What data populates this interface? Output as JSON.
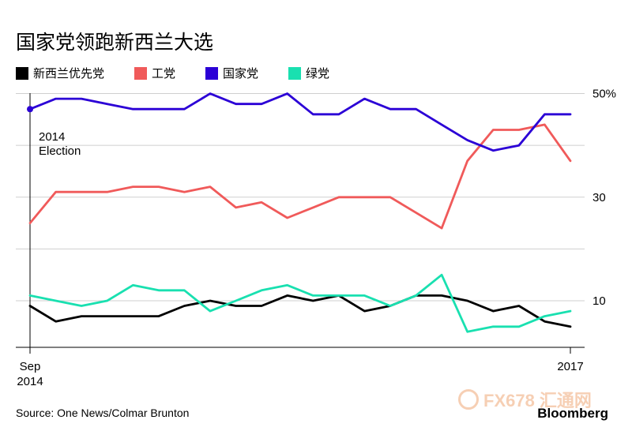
{
  "title": "国家党领跑新西兰大选",
  "source": "Source: One News/Colmar Brunton",
  "brand": "Bloomberg",
  "watermark": "FX678 汇通网",
  "annotation": [
    "2014",
    "Election"
  ],
  "chart_data": {
    "type": "line",
    "x": [
      0,
      1,
      2,
      3,
      4,
      5,
      6,
      7,
      8,
      9,
      10,
      11,
      12,
      13,
      14,
      15,
      16,
      17,
      18,
      19,
      20,
      21
    ],
    "x_tick_labels": [
      [
        "Sep",
        "2014"
      ],
      [
        "2017"
      ]
    ],
    "y_ticks": [
      10,
      30,
      50
    ],
    "y_tick_labels": [
      "10",
      "30",
      "50%"
    ],
    "ylim": [
      1,
      51
    ],
    "grid": true,
    "legend": "top",
    "series": [
      {
        "name": "新西兰优先党",
        "color": "#000000",
        "values": [
          9,
          6,
          7,
          7,
          7,
          7,
          9,
          10,
          9,
          9,
          11,
          10,
          11,
          8,
          9,
          11,
          11,
          10,
          8,
          9,
          6,
          5
        ]
      },
      {
        "name": "工党",
        "color": "#f05a5a",
        "values": [
          25,
          31,
          31,
          31,
          32,
          32,
          31,
          32,
          28,
          29,
          26,
          28,
          30,
          30,
          30,
          27,
          24,
          37,
          43,
          43,
          44,
          37
        ]
      },
      {
        "name": "国家党",
        "color": "#2b00d6",
        "values": [
          47,
          49,
          49,
          48,
          47,
          47,
          47,
          50,
          48,
          48,
          50,
          46,
          46,
          49,
          47,
          47,
          44,
          41,
          39,
          40,
          46,
          46
        ]
      },
      {
        "name": "绿党",
        "color": "#19e0b0",
        "values": [
          11,
          10,
          9,
          10,
          13,
          12,
          12,
          8,
          10,
          12,
          13,
          11,
          11,
          11,
          9,
          11,
          15,
          4,
          5,
          5,
          7,
          8
        ]
      }
    ]
  }
}
